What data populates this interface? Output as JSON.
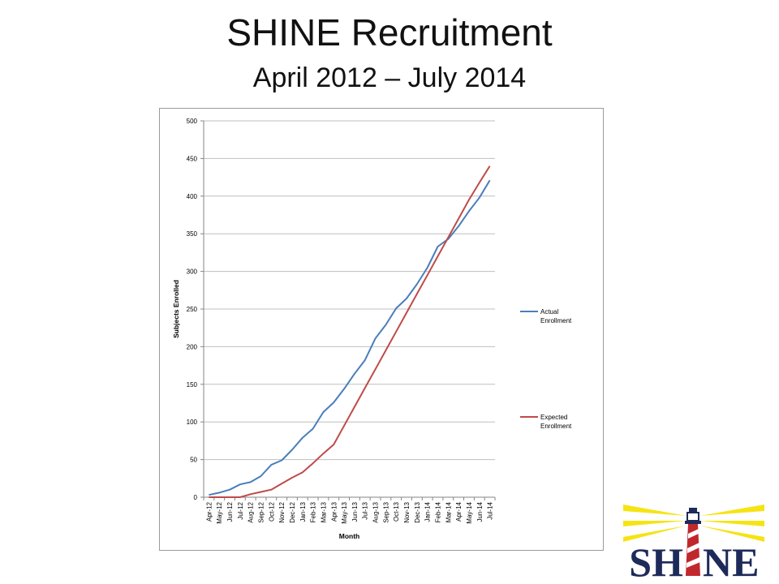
{
  "slide": {
    "title": "SHINE Recruitment",
    "subtitle": "April 2012 – July 2014"
  },
  "logo": {
    "text_left": "SH",
    "text_right": "NE",
    "colors": {
      "red": "#c0282d",
      "navy": "#1d2a5a",
      "yellow": "#f5e414"
    }
  },
  "chart_data": {
    "type": "line",
    "title": "",
    "xlabel": "Month",
    "ylabel": "Subjects Enrolled",
    "ylim": [
      0,
      500
    ],
    "yticks": [
      0,
      50,
      100,
      150,
      200,
      250,
      300,
      350,
      400,
      450,
      500
    ],
    "grid": "horizontal",
    "legend_position": "right",
    "categories": [
      "Apr-12",
      "May-12",
      "Jun-12",
      "Jul-12",
      "Aug-12",
      "Sep-12",
      "Oct-12",
      "Nov-12",
      "Dec-12",
      "Jan-13",
      "Feb-13",
      "Mar-13",
      "Apr-13",
      "May-13",
      "Jun-13",
      "Jul-13",
      "Aug-13",
      "Sep-13",
      "Oct-13",
      "Nov-13",
      "Dec-13",
      "Jan-14",
      "Feb-14",
      "Mar-14",
      "Apr-14",
      "May-14",
      "Jun-14",
      "Jul-14"
    ],
    "series": [
      {
        "name": "Actual Enrollment",
        "color": "#4a7ebb",
        "values": [
          3,
          6,
          10,
          17,
          20,
          28,
          43,
          49,
          63,
          79,
          91,
          113,
          126,
          144,
          164,
          182,
          211,
          229,
          251,
          264,
          283,
          305,
          333,
          343,
          360,
          380,
          398,
          421
        ]
      },
      {
        "name": "Expected Enrollment",
        "color": "#be4b48",
        "values": [
          0,
          0,
          0,
          0,
          4,
          7,
          10,
          18,
          26,
          33,
          45,
          58,
          70,
          95,
          120,
          145,
          170,
          195,
          220,
          245,
          270,
          295,
          320,
          345,
          370,
          395,
          418,
          440
        ]
      }
    ]
  }
}
